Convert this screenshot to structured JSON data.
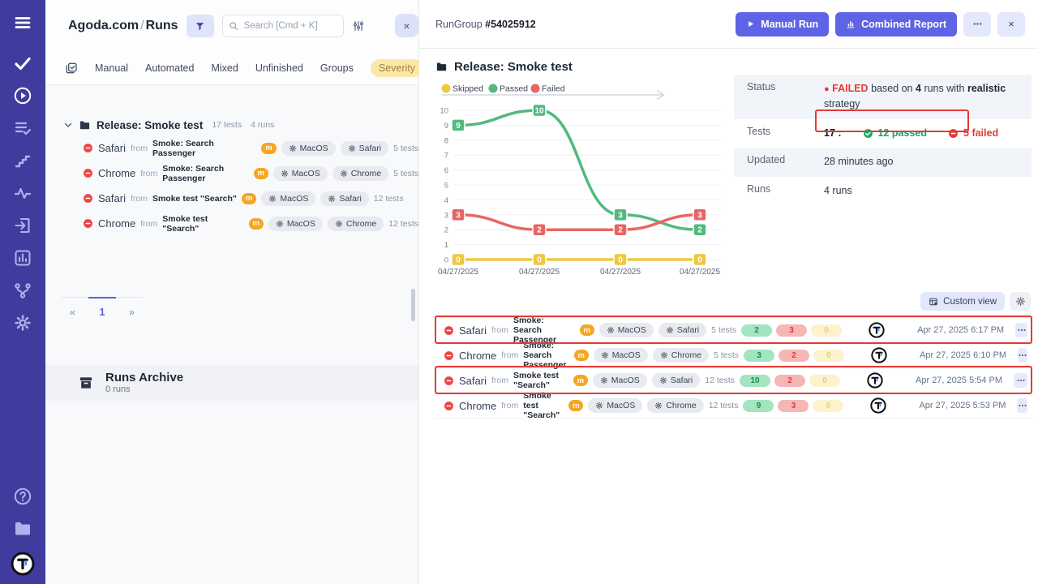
{
  "colors": {
    "accent": "#5f63e6",
    "sidebar": "#3f3c9d",
    "failed": "#e53935",
    "passed": "#10a56b",
    "annotation": "#e53935"
  },
  "left_panel": {
    "breadcrumb": {
      "project": "Agoda.com",
      "sep": "/",
      "page": "Runs"
    },
    "search": {
      "placeholder": "Search [Cmd + K]",
      "value": ""
    },
    "close_label": "×",
    "tabs": [
      "Manual",
      "Automated",
      "Mixed",
      "Unfinished",
      "Groups",
      "Severity"
    ],
    "tree": {
      "group": {
        "name": "Release: Smoke test",
        "tests": "17 tests",
        "runs": "4 runs"
      },
      "runs": [
        {
          "name": "Safari",
          "from_label": "from",
          "source": "Smoke: Search Passenger",
          "assignee": "m",
          "os": "MacOS",
          "browser": "Safari",
          "tests": "5 tests"
        },
        {
          "name": "Chrome",
          "from_label": "from",
          "source": "Smoke: Search Passenger",
          "assignee": "m",
          "os": "MacOS",
          "browser": "Chrome",
          "tests": "5 tests"
        },
        {
          "name": "Safari",
          "from_label": "from",
          "source": "Smoke test \"Search\"",
          "assignee": "m",
          "os": "MacOS",
          "browser": "Safari",
          "tests": "12 tests"
        },
        {
          "name": "Chrome",
          "from_label": "from",
          "source": "Smoke test \"Search\"",
          "assignee": "m",
          "os": "MacOS",
          "browser": "Chrome",
          "tests": "12 tests"
        }
      ]
    },
    "pagination": {
      "prev": "«",
      "page": "1",
      "next": "»"
    },
    "archive": {
      "title": "Runs Archive",
      "count": "0 runs"
    }
  },
  "right_panel": {
    "header": {
      "rungroup_label": "RunGroup",
      "rungroup_id": "#54025912",
      "manual_run": "Manual Run",
      "combined_report": "Combined Report",
      "close_label": "×"
    },
    "title": "Release: Smoke test",
    "summary": {
      "status_label": "Status",
      "status_dot": "●",
      "status_badge": "FAILED",
      "status_text_1": "based on",
      "status_runs": "4",
      "status_text_2": "runs with",
      "status_strategy": "realistic",
      "status_text_3": "strategy",
      "tests_label": "Tests",
      "tests_total": "17 :",
      "tests_passed": "12 passed",
      "tests_failed": "5 failed",
      "updated_label": "Updated",
      "updated_value": "28 minutes ago",
      "runs_label": "Runs",
      "runs_value": "4 runs"
    },
    "custom_view_label": "Custom view",
    "runs": [
      {
        "name": "Safari",
        "from_label": "from",
        "source": "Smoke: Search Passenger",
        "assignee": "m",
        "os": "MacOS",
        "browser": "Safari",
        "tests": "5 tests",
        "passed": "2",
        "failed": "3",
        "skipped": "0",
        "date": "Apr 27, 2025 6:17 PM"
      },
      {
        "name": "Chrome",
        "from_label": "from",
        "source": "Smoke: Search Passenger",
        "assignee": "m",
        "os": "MacOS",
        "browser": "Chrome",
        "tests": "5 tests",
        "passed": "3",
        "failed": "2",
        "skipped": "0",
        "date": "Apr 27, 2025 6:10 PM"
      },
      {
        "name": "Safari",
        "from_label": "from",
        "source": "Smoke test \"Search\"",
        "assignee": "m",
        "os": "MacOS",
        "browser": "Safari",
        "tests": "12 tests",
        "passed": "10",
        "failed": "2",
        "skipped": "0",
        "date": "Apr 27, 2025 5:54 PM"
      },
      {
        "name": "Chrome",
        "from_label": "from",
        "source": "Smoke test \"Search\"",
        "assignee": "m",
        "os": "MacOS",
        "browser": "Chrome",
        "tests": "12 tests",
        "passed": "9",
        "failed": "3",
        "skipped": "0",
        "date": "Apr 27, 2025 5:53 PM"
      }
    ]
  },
  "chart_data": {
    "type": "line",
    "x": [
      "04/27/2025",
      "04/27/2025",
      "04/27/2025",
      "04/27/2025"
    ],
    "series": [
      {
        "name": "Skipped",
        "color": "#edc843",
        "values": [
          0,
          0,
          0,
          0
        ]
      },
      {
        "name": "Passed",
        "color": "#53b97e",
        "values": [
          9,
          10,
          3,
          2
        ]
      },
      {
        "name": "Failed",
        "color": "#e96565",
        "values": [
          3,
          2,
          2,
          3
        ]
      }
    ],
    "title": "",
    "xlabel": "",
    "ylabel": "",
    "ylim": [
      0,
      10
    ],
    "yticks": [
      0,
      1,
      2,
      3,
      4,
      5,
      6,
      7,
      8,
      9,
      10
    ],
    "grid": true,
    "legend_position": "top",
    "point_labels": true
  }
}
